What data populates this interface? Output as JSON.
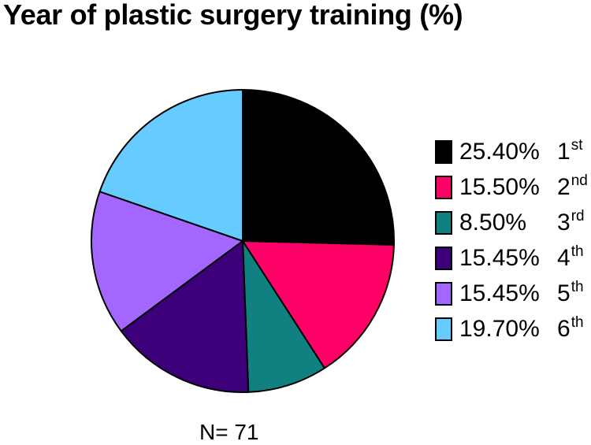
{
  "chart_data": {
    "type": "pie",
    "title": "Year of plastic surgery training (%)",
    "note": "N= 71",
    "slices": [
      {
        "label": "25.40%",
        "year": "1",
        "suffix": "st",
        "value": 25.4,
        "color": "#000000"
      },
      {
        "label": "15.50%",
        "year": "2",
        "suffix": "nd",
        "value": 15.5,
        "color": "#ff0066"
      },
      {
        "label": "8.50%",
        "year": "3",
        "suffix": "rd",
        "value": 8.5,
        "color": "#118080"
      },
      {
        "label": "15.45%",
        "year": "4",
        "suffix": "th",
        "value": 15.45,
        "color": "#3d007a"
      },
      {
        "label": "15.45%",
        "year": "5",
        "suffix": "th",
        "value": 15.45,
        "color": "#a366ff"
      },
      {
        "label": "19.70%",
        "year": "6",
        "suffix": "th",
        "value": 19.7,
        "color": "#66ccff"
      }
    ],
    "legend": "right"
  }
}
